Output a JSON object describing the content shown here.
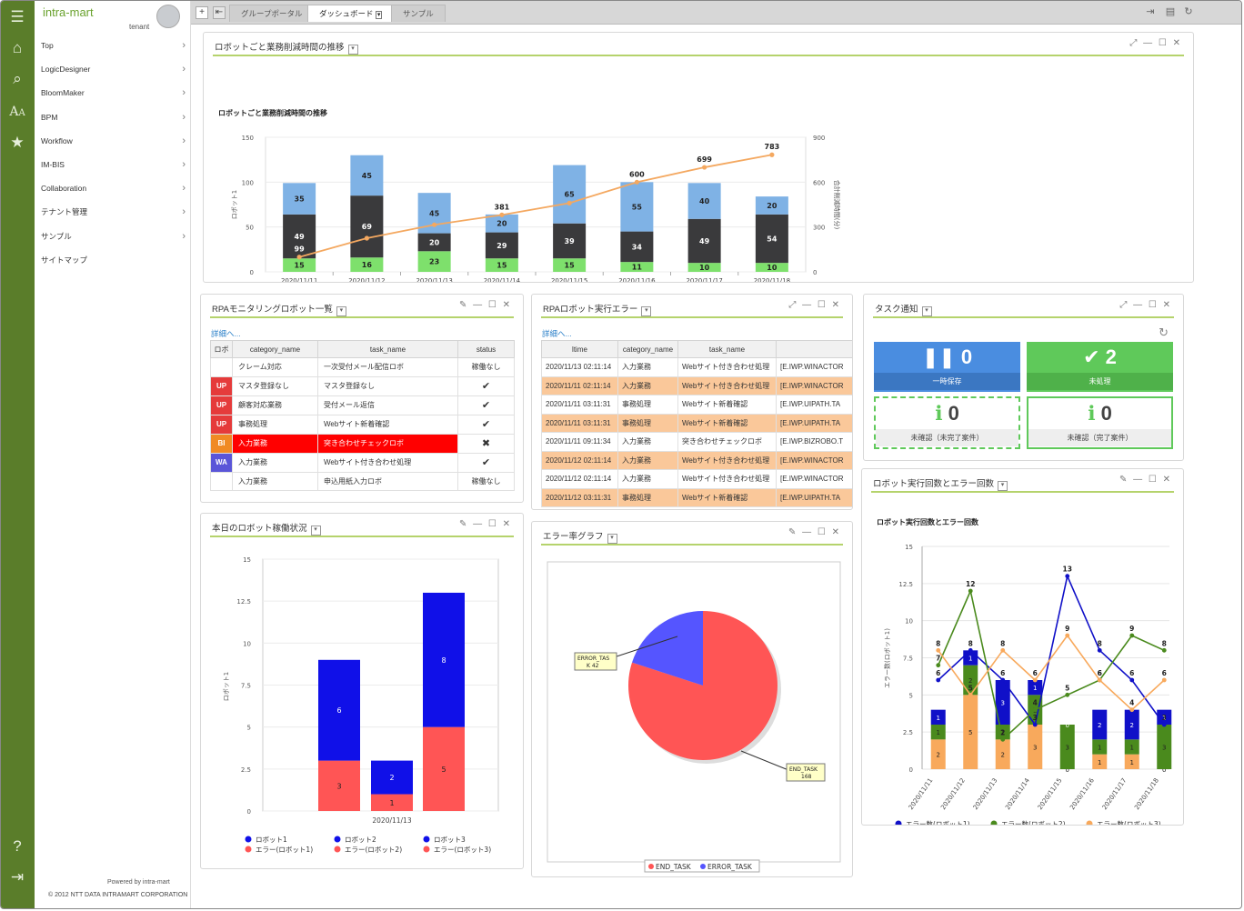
{
  "app": {
    "brand": "intra-mart",
    "tenant": "tenant",
    "powered": "Powered by intra-mart",
    "copyright": "© 2012 NTT DATA INTRAMART CORPORATION"
  },
  "nav": {
    "items": [
      "Top",
      "LogicDesigner",
      "BloomMaker",
      "BPM",
      "Workflow",
      "IM-BIS",
      "Collaboration",
      "テナント管理",
      "サンプル",
      "サイトマップ"
    ]
  },
  "tabs": [
    "グループポータル",
    "ダッシュボード",
    "サンプル"
  ],
  "icons": [
    "menu-icon",
    "home-icon",
    "search-icon",
    "font-size-icon",
    "star-icon",
    "help-icon",
    "logout-icon"
  ],
  "colors": {
    "accent": "#5a7d2a",
    "series_blue": "#7fb2e5",
    "series_dark": "#3a3a3c",
    "series_green": "#7ee06c",
    "line_orange": "#f4a860",
    "pie_red": "#f55",
    "pie_blue": "#55f"
  },
  "portlets": {
    "robot_time": {
      "title": "ロボットごと業務削減時間の推移"
    },
    "monitor": {
      "title": "RPAモニタリングロボット一覧",
      "link": "詳細へ...",
      "headers": [
        "ロボ",
        "category_name",
        "task_name",
        "status"
      ],
      "rows": [
        {
          "badge": "",
          "category": "クレーム対応",
          "task": "一次受付メール配信ロボ",
          "status": "稼働なし"
        },
        {
          "badge": "UP",
          "category": "マスタ登録なし",
          "task": "マスタ登録なし",
          "status": "✔"
        },
        {
          "badge": "UP",
          "category": "顧客対応業務",
          "task": "受付メール返信",
          "status": "✔"
        },
        {
          "badge": "UP",
          "category": "事務処理",
          "task": "Webサイト新着確認",
          "status": "✔"
        },
        {
          "badge": "BI",
          "category": "入力業務",
          "task": "突き合わせチェックロボ",
          "status": "✖"
        },
        {
          "badge": "WA",
          "category": "入力業務",
          "task": "Webサイト付き合わせ処理",
          "status": "✔"
        },
        {
          "badge": "",
          "category": "入力業務",
          "task": "申込用紙入力ロボ",
          "status": "稼働なし"
        }
      ]
    },
    "errors": {
      "title": "RPAロボット実行エラー",
      "link": "詳細へ...",
      "headers": [
        "ltime",
        "category_name",
        "task_name",
        ""
      ],
      "rows": [
        {
          "time": "2020/11/13 02:11:14",
          "category": "入力業務",
          "task": "Webサイト付き合わせ処理",
          "robot": "[E.IWP.WINACTOR"
        },
        {
          "time": "2020/11/11 02:11:14",
          "category": "入力業務",
          "task": "Webサイト付き合わせ処理",
          "robot": "[E.IWP.WINACTOR"
        },
        {
          "time": "2020/11/11 03:11:31",
          "category": "事務処理",
          "task": "Webサイト新着確認",
          "robot": "[E.IWP.UIPATH.TA"
        },
        {
          "time": "2020/11/11 03:11:31",
          "category": "事務処理",
          "task": "Webサイト新着確認",
          "robot": "[E.IWP.UIPATH.TA"
        },
        {
          "time": "2020/11/11 09:11:34",
          "category": "入力業務",
          "task": "突き合わせチェックロボ",
          "robot": "[E.IWP.BIZROBO.T"
        },
        {
          "time": "2020/11/12 02:11:14",
          "category": "入力業務",
          "task": "Webサイト付き合わせ処理",
          "robot": "[E.IWP.WINACTOR"
        },
        {
          "time": "2020/11/12 02:11:14",
          "category": "入力業務",
          "task": "Webサイト付き合わせ処理",
          "robot": "[E.IWP.WINACTOR"
        },
        {
          "time": "2020/11/12 03:11:31",
          "category": "事務処理",
          "task": "Webサイト新着確認",
          "robot": "[E.IWP.UIPATH.TA"
        }
      ]
    },
    "tasks": {
      "title": "タスク通知",
      "tiles": [
        {
          "count": "0",
          "label": "一時保存"
        },
        {
          "count": "2",
          "label": "未処理"
        },
        {
          "count": "0",
          "label": "未確認（未完了案件）"
        },
        {
          "count": "0",
          "label": "未確認（完了案件）"
        }
      ]
    },
    "today": {
      "title": "本日のロボット稼働状況"
    },
    "error_rate": {
      "title": "エラー率グラフ"
    },
    "exec_err": {
      "title": "ロボット実行回数とエラー回数"
    }
  },
  "chart_data": [
    {
      "id": "robot_time",
      "type": "bar",
      "title": "ロボットごと業務削減時間の推移",
      "categories": [
        "2020/11/11",
        "2020/11/12",
        "2020/11/13",
        "2020/11/14",
        "2020/11/15",
        "2020/11/16",
        "2020/11/17",
        "2020/11/18"
      ],
      "series": [
        {
          "name": "ロボット1",
          "stack": true,
          "values": [
            35,
            45,
            45,
            20,
            65,
            55,
            40,
            20
          ],
          "labels": [
            "35",
            "45",
            "45",
            "20",
            "65",
            "55",
            "40",
            "20"
          ]
        },
        {
          "name": "ロボット2",
          "stack": true,
          "values": [
            49,
            69,
            20,
            29,
            39,
            34,
            49,
            54
          ],
          "labels": [
            "49",
            "69",
            "20",
            "29",
            "39",
            "34",
            "49",
            "54"
          ]
        },
        {
          "name": "ロボット3",
          "stack": true,
          "values": [
            15,
            16,
            23,
            15,
            15,
            11,
            10,
            10
          ],
          "labels": [
            "15",
            "16",
            "23",
            "15",
            "15",
            "11",
            "10",
            "10"
          ]
        },
        {
          "name": "合計削減時間(分)",
          "type": "line",
          "axis": "right",
          "values": [
            99,
            225,
            315,
            381,
            460,
            600,
            699,
            783
          ],
          "labels": [
            "",
            "",
            "",
            "381",
            "",
            "600",
            "699",
            "783"
          ]
        }
      ],
      "extra_labels": [
        "99"
      ],
      "ylabel": "ロボット1",
      "ylabel_right": "合計削減時間(分)",
      "ylim": [
        0,
        150
      ],
      "yticks": [
        "0",
        "50",
        "100",
        "150"
      ],
      "ylim_right": [
        0,
        900
      ],
      "yticks_right": [
        "0",
        "300",
        "600",
        "900"
      ]
    },
    {
      "id": "today",
      "type": "bar",
      "title": "本日のロボット稼働状況",
      "categories": [
        "2020/11/13"
      ],
      "bars": [
        {
          "name": "ロボット1",
          "ok": 6,
          "err": 3
        },
        {
          "name": "ロボット2",
          "ok": 2,
          "err": 1
        },
        {
          "name": "ロボット3",
          "ok": 8,
          "err": 5
        }
      ],
      "legend": [
        "ロボット1",
        "ロボット2",
        "ロボット3",
        "エラー(ロボット1)",
        "エラー(ロボット2)",
        "エラー(ロボット3)"
      ],
      "ylabel": "ロボット1",
      "ylim": [
        0,
        15
      ],
      "yticks": [
        "0",
        "2.5",
        "5",
        "7.5",
        "10",
        "12.5",
        "15"
      ]
    },
    {
      "id": "error_rate",
      "type": "pie",
      "slices": [
        {
          "label": "END_TASK",
          "value": 168
        },
        {
          "label": "ERROR_TASK",
          "value": 42
        }
      ],
      "callouts": [
        "ERROR_TASK 42",
        "END_TASK 168"
      ],
      "legend": [
        "END_TASK",
        "ERROR_TASK"
      ]
    },
    {
      "id": "exec_err",
      "type": "bar",
      "title": "ロボット実行回数とエラー回数",
      "categories": [
        "2020/11/11",
        "2020/11/12",
        "2020/11/13",
        "2020/11/14",
        "2020/11/15",
        "2020/11/16",
        "2020/11/17",
        "2020/11/18"
      ],
      "stacks": [
        [
          2,
          1,
          1
        ],
        [
          5,
          2,
          1
        ],
        [
          2,
          1,
          3
        ],
        [
          3,
          2,
          1
        ],
        [
          0,
          3,
          0
        ],
        [
          1,
          1,
          2
        ],
        [
          1,
          1,
          2
        ],
        [
          0,
          3,
          1
        ]
      ],
      "stack_series": [
        "エラー数(ロボット3)",
        "エラー数(ロボット2)",
        "エラー数(ロボット1)"
      ],
      "lines": [
        {
          "name": "ロボット1",
          "values": [
            6,
            8,
            6,
            3,
            13,
            8,
            6,
            3
          ]
        },
        {
          "name": "ロボット2",
          "values": [
            7,
            12,
            2,
            4,
            5,
            6,
            9,
            8
          ]
        },
        {
          "name": "ロボット3",
          "values": [
            8,
            5,
            8,
            6,
            9,
            6,
            4,
            6
          ]
        }
      ],
      "legend": [
        "エラー数(ロボット1)",
        "エラー数(ロボット2)",
        "エラー数(ロボット3)"
      ],
      "ylabel": "エラー数(ロボット1)",
      "ylim": [
        0,
        15
      ],
      "yticks": [
        "0",
        "2.5",
        "5",
        "7.5",
        "10",
        "12.5",
        "15"
      ]
    }
  ]
}
